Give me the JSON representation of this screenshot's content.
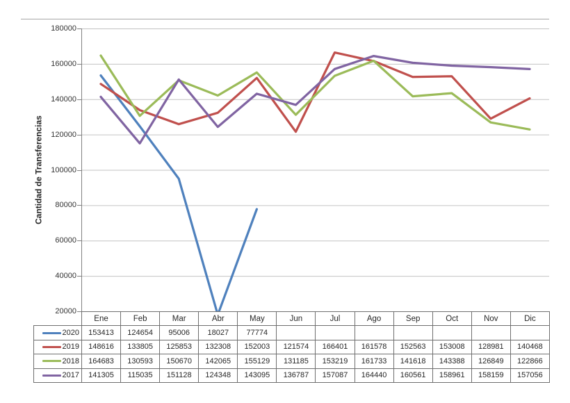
{
  "chart_data": {
    "type": "line",
    "title": "",
    "xlabel": "",
    "ylabel": "Cantidad de Transferencias",
    "categories": [
      "Ene",
      "Feb",
      "Mar",
      "Abr",
      "May",
      "Jun",
      "Jul",
      "Ago",
      "Sep",
      "Oct",
      "Nov",
      "Dic"
    ],
    "series": [
      {
        "name": "2020",
        "color": "#4F81BD",
        "values": [
          153413,
          124654,
          95006,
          18027,
          77774,
          null,
          null,
          null,
          null,
          null,
          null,
          null
        ]
      },
      {
        "name": "2019",
        "color": "#C0504D",
        "values": [
          148616,
          133805,
          125853,
          132308,
          152003,
          121574,
          166401,
          161578,
          152563,
          153008,
          128981,
          140468
        ]
      },
      {
        "name": "2018",
        "color": "#9BBB59",
        "values": [
          164683,
          130593,
          150670,
          142065,
          155129,
          131185,
          153219,
          161733,
          141618,
          143388,
          126849,
          122866
        ]
      },
      {
        "name": "2017",
        "color": "#8064A2",
        "values": [
          141305,
          115035,
          151128,
          124348,
          143095,
          136787,
          157087,
          164440,
          160561,
          158961,
          158159,
          157056
        ]
      }
    ],
    "ylim": [
      20000,
      180000
    ],
    "yticks": [
      180000,
      160000,
      140000,
      120000,
      100000,
      80000,
      60000,
      40000,
      20000
    ],
    "grid": true,
    "legend_position": "data-table-left",
    "data_table_shown": true
  },
  "colors": {
    "gridline": "#c3c3c3",
    "axis": "#808080",
    "chart_top_border": "#a6a6a6",
    "table_border": "#6e6e6e",
    "text": "#262626"
  }
}
